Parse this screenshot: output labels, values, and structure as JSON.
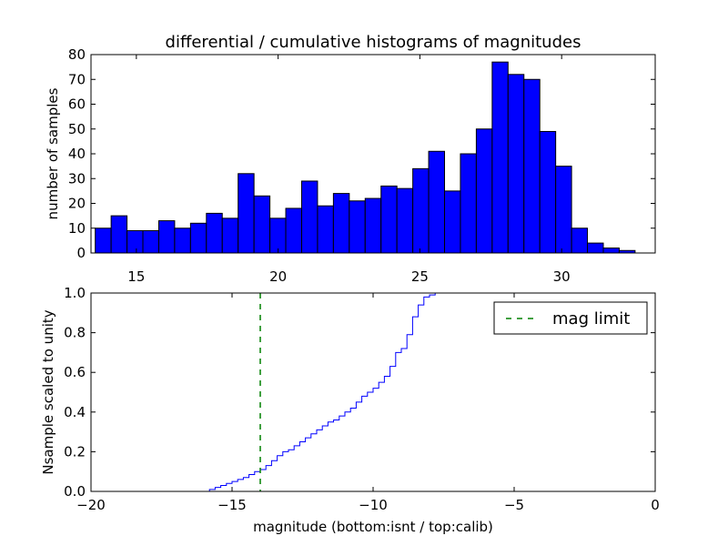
{
  "title": "differential / cumulative histograms of magnitudes",
  "colors": {
    "bars": "#0000ff",
    "cumulative": "#0000ff",
    "limit": "#008000"
  },
  "chart_data": [
    {
      "type": "bar",
      "subplot": "top",
      "ylabel": "number of samples",
      "xlim": [
        13.4,
        33.3
      ],
      "ylim": [
        0,
        80
      ],
      "xticks": [
        15,
        20,
        25,
        30
      ],
      "yticks": [
        0,
        10,
        20,
        30,
        40,
        50,
        60,
        70,
        80
      ],
      "bin_start": 13.55,
      "bin_width": 0.56,
      "values": [
        10,
        15,
        9,
        9,
        13,
        10,
        12,
        16,
        14,
        32,
        23,
        14,
        18,
        29,
        19,
        24,
        21,
        22,
        27,
        26,
        34,
        41,
        25,
        40,
        50,
        77,
        72,
        70,
        49,
        35,
        10,
        4,
        2,
        1
      ]
    },
    {
      "type": "line",
      "subplot": "bottom",
      "xlabel": "magnitude (bottom:isnt / top:calib)",
      "ylabel": "Nsample scaled to unity",
      "xlim": [
        -20,
        0
      ],
      "ylim": [
        0,
        1
      ],
      "xticks": [
        -20,
        -15,
        -10,
        -5,
        0
      ],
      "yticks": [
        0.0,
        0.2,
        0.4,
        0.6,
        0.8,
        1.0
      ],
      "ytick_labels": [
        "0.0",
        "0.2",
        "0.4",
        "0.6",
        "0.8",
        "1.0"
      ],
      "step_start": -15.8,
      "step_width": 0.2,
      "cumulative": [
        0.01,
        0.02,
        0.03,
        0.04,
        0.05,
        0.06,
        0.07,
        0.085,
        0.1,
        0.11,
        0.13,
        0.155,
        0.18,
        0.2,
        0.21,
        0.23,
        0.25,
        0.27,
        0.29,
        0.31,
        0.33,
        0.35,
        0.36,
        0.38,
        0.4,
        0.42,
        0.45,
        0.48,
        0.5,
        0.52,
        0.55,
        0.58,
        0.63,
        0.7,
        0.72,
        0.79,
        0.88,
        0.94,
        0.98,
        0.99,
        1.0
      ],
      "vline": {
        "x": -14,
        "label": "mag limit",
        "style": "dashed"
      },
      "legend": {
        "entries": [
          "mag limit"
        ],
        "placement": "upper right"
      }
    }
  ]
}
